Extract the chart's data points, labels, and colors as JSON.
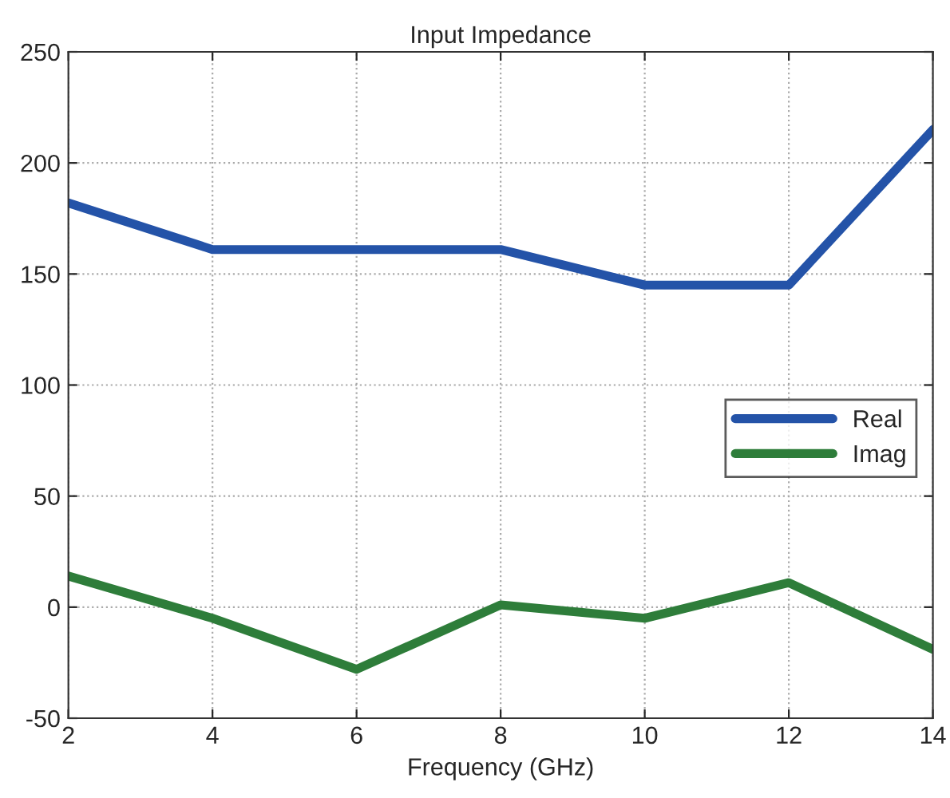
{
  "chart_data": {
    "type": "line",
    "title": "Input Impedance",
    "xlabel": "Frequency (GHz)",
    "x": [
      2,
      4,
      6,
      8,
      10,
      12,
      14
    ],
    "series": [
      {
        "name": "Real",
        "color": "#2453a8",
        "values": [
          182,
          161,
          161,
          161,
          145,
          145,
          215
        ]
      },
      {
        "name": "Imag",
        "color": "#2e7d3a",
        "values": [
          14,
          -5,
          -28,
          1,
          -5,
          11,
          -19
        ]
      }
    ],
    "xlim": [
      2,
      14
    ],
    "xticks": [
      2,
      4,
      6,
      8,
      10,
      12,
      14
    ],
    "ylim": [
      -50,
      250
    ],
    "yticks": [
      -50,
      0,
      50,
      100,
      150,
      200,
      250
    ],
    "grid": true,
    "legend": "right",
    "line_style": "solid",
    "marker": "none"
  }
}
